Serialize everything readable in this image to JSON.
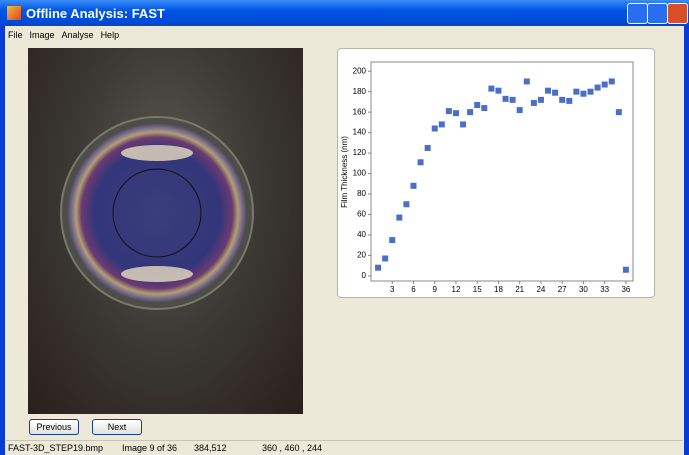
{
  "window": {
    "title": "Offline Analysis: FAST"
  },
  "menu": [
    "File",
    "Image",
    "Analyse",
    "Help"
  ],
  "buttons": [
    "Previous",
    "Next"
  ],
  "status": [
    "FAST-3D_STEP19.bmp",
    "Image 9 of 36",
    "384,512",
    "360 , 460 , 244"
  ],
  "chart_data": {
    "type": "scatter",
    "y_label": "Film Thickness (nm)",
    "color": "#4a6fc7",
    "x": [
      1,
      2,
      3,
      4,
      5,
      6,
      7,
      8,
      9,
      10,
      11,
      12,
      13,
      14,
      15,
      16,
      17,
      18,
      19,
      20,
      21,
      22,
      23,
      24,
      25,
      26,
      27,
      28,
      29,
      30,
      31,
      32,
      33,
      34,
      35,
      36
    ],
    "values": [
      8,
      17,
      35,
      57,
      70,
      88,
      111,
      125,
      144,
      148,
      161,
      159,
      148,
      160,
      167,
      164,
      183,
      181,
      173,
      172,
      162,
      190,
      169,
      172,
      181,
      179,
      172,
      171,
      180,
      178,
      180,
      184,
      187,
      190,
      160,
      6
    ],
    "xlim": [
      0,
      37
    ],
    "ylim": [
      -5,
      209
    ],
    "xticks": [
      3,
      6,
      9,
      12,
      15,
      18,
      21,
      24,
      27,
      30,
      33,
      36
    ],
    "yticks": [
      0,
      20,
      40,
      60,
      80,
      100,
      120,
      140,
      160,
      180,
      200
    ]
  }
}
